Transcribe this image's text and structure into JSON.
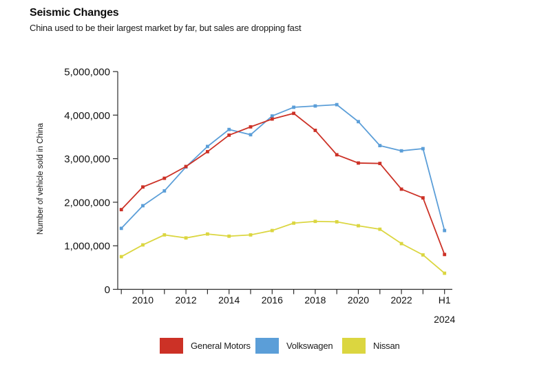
{
  "header": {
    "title": "Seismic Changes",
    "subtitle": "China used to be their largest market by far, but sales are dropping fast"
  },
  "chart_data": {
    "type": "line",
    "title": "Seismic Changes",
    "subtitle": "China used to be their largest market by far, but sales are dropping fast",
    "xlabel": "",
    "ylabel": "Number of vehicle sold in China",
    "ylim": [
      0,
      5000000
    ],
    "grid": false,
    "marker": "square",
    "legend_position": "bottom",
    "y_ticks": [
      {
        "value": 0,
        "label": "0"
      },
      {
        "value": 1000000,
        "label": "1,000,000"
      },
      {
        "value": 2000000,
        "label": "2,000,000"
      },
      {
        "value": 3000000,
        "label": "3,000,000"
      },
      {
        "value": 4000000,
        "label": "4,000,000"
      },
      {
        "value": 5000000,
        "label": "5,000,000"
      }
    ],
    "categories": [
      "2009",
      "2010",
      "2011",
      "2012",
      "2013",
      "2014",
      "2015",
      "2016",
      "2017",
      "2018",
      "2019",
      "2020",
      "2021",
      "2022",
      "2023",
      "H1 2024"
    ],
    "x_tick_labels": [
      {
        "index": 1,
        "label": "2010"
      },
      {
        "index": 3,
        "label": "2012"
      },
      {
        "index": 5,
        "label": "2014"
      },
      {
        "index": 7,
        "label": "2016"
      },
      {
        "index": 9,
        "label": "2018"
      },
      {
        "index": 11,
        "label": "2020"
      },
      {
        "index": 13,
        "label": "2022"
      },
      {
        "index": 15,
        "label": "H1",
        "label_line2": "2024"
      }
    ],
    "series": [
      {
        "name": "General Motors",
        "color": "#cc3126",
        "values": [
          1830000,
          2350000,
          2550000,
          2820000,
          3160000,
          3540000,
          3730000,
          3910000,
          4040000,
          3650000,
          3090000,
          2900000,
          2890000,
          2300000,
          2100000,
          800000
        ]
      },
      {
        "name": "Volkswagen",
        "color": "#5b9ed8",
        "values": [
          1400000,
          1920000,
          2260000,
          2810000,
          3280000,
          3670000,
          3550000,
          3980000,
          4180000,
          4210000,
          4240000,
          3850000,
          3300000,
          3180000,
          3230000,
          1350000
        ]
      },
      {
        "name": "Nissan",
        "color": "#dbd640",
        "values": [
          750000,
          1020000,
          1250000,
          1180000,
          1270000,
          1220000,
          1250000,
          1350000,
          1520000,
          1560000,
          1550000,
          1460000,
          1380000,
          1050000,
          790000,
          370000
        ]
      }
    ],
    "axis_color": "#2b2b2b",
    "text_color": "#111111"
  }
}
